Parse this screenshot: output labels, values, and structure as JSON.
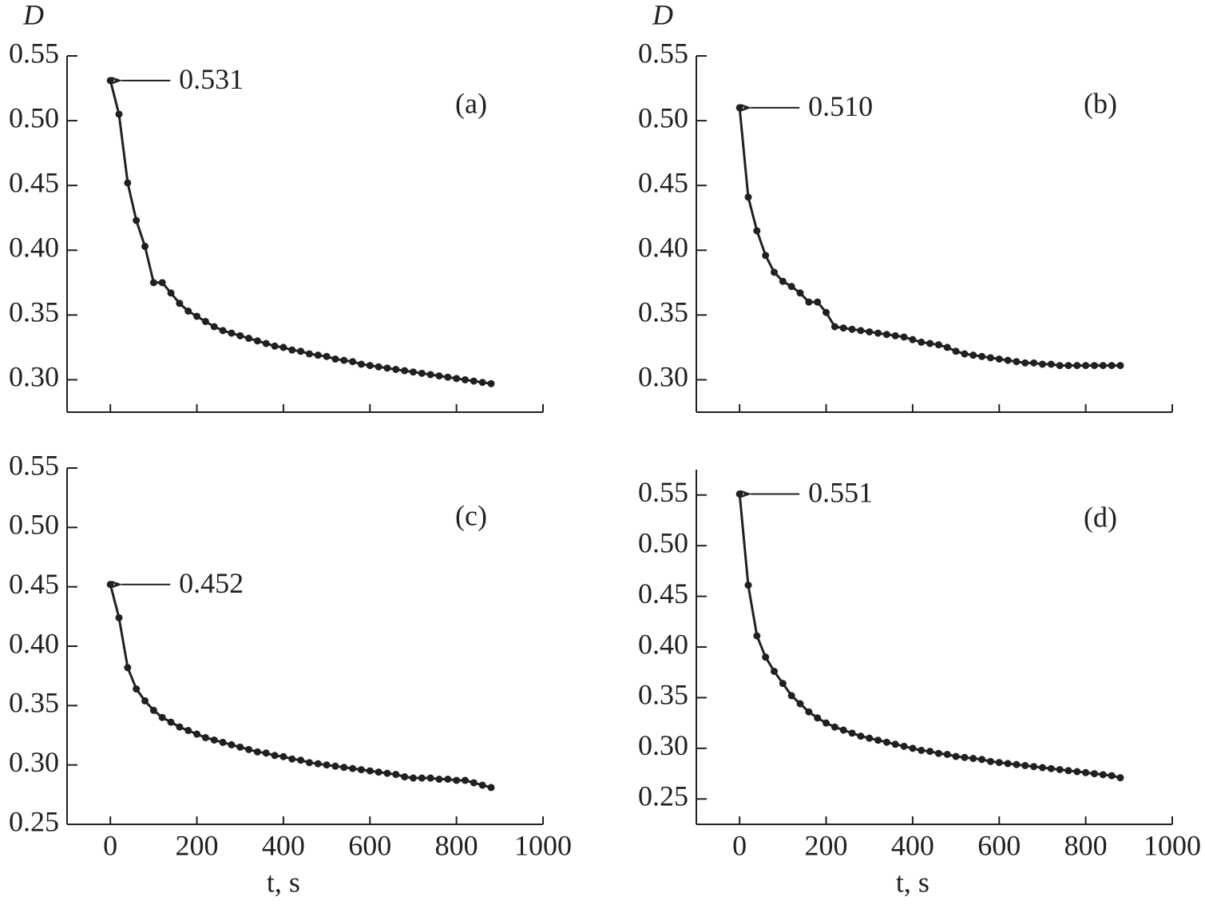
{
  "chart_data": [
    {
      "type": "line",
      "panel_label": "(a)",
      "ylabel": "D",
      "annotation": "0.531",
      "color": "#231f20",
      "show_xticklabels": false,
      "xlim": [
        -100,
        1000
      ],
      "xticks": [
        0,
        200,
        400,
        600,
        800,
        1000
      ],
      "ylim": [
        0.275,
        0.55
      ],
      "yticks": [
        {
          "value": 0.3,
          "label": "0.30"
        },
        0.35,
        {
          "value": 0.4,
          "label": "0.40"
        },
        0.45,
        {
          "value": 0.5,
          "label": "0.50"
        },
        0.55
      ],
      "x": [
        0,
        20,
        40,
        60,
        80,
        100,
        120,
        140,
        160,
        180,
        200,
        220,
        240,
        260,
        280,
        300,
        320,
        340,
        360,
        380,
        400,
        420,
        440,
        460,
        480,
        500,
        520,
        540,
        560,
        580,
        600,
        620,
        640,
        660,
        680,
        700,
        720,
        740,
        760,
        780,
        800,
        820,
        840,
        860,
        880
      ],
      "values": [
        0.531,
        0.505,
        0.452,
        0.423,
        0.403,
        0.375,
        0.375,
        0.367,
        0.359,
        0.353,
        0.349,
        0.345,
        0.341,
        0.338,
        0.336,
        0.334,
        0.332,
        0.33,
        0.328,
        0.326,
        0.325,
        0.323,
        0.322,
        0.32,
        0.319,
        0.318,
        0.316,
        0.315,
        0.314,
        0.312,
        0.311,
        0.31,
        0.309,
        0.308,
        0.307,
        0.306,
        0.305,
        0.304,
        0.303,
        0.302,
        0.301,
        0.3,
        0.299,
        0.298,
        0.297
      ]
    },
    {
      "type": "line",
      "panel_label": "(b)",
      "ylabel": "D",
      "annotation": "0.510",
      "color": "#231f20",
      "show_xticklabels": false,
      "xlim": [
        -100,
        1000
      ],
      "xticks": [
        0,
        200,
        400,
        600,
        800,
        1000
      ],
      "ylim": [
        0.275,
        0.55
      ],
      "yticks": [
        {
          "value": 0.3,
          "label": "0.30"
        },
        0.35,
        {
          "value": 0.4,
          "label": "0.40"
        },
        0.45,
        {
          "value": 0.5,
          "label": "0.50"
        },
        0.55
      ],
      "x": [
        0,
        20,
        40,
        60,
        80,
        100,
        120,
        140,
        160,
        180,
        200,
        220,
        240,
        260,
        280,
        300,
        320,
        340,
        360,
        380,
        400,
        420,
        440,
        460,
        480,
        500,
        520,
        540,
        560,
        580,
        600,
        620,
        640,
        660,
        680,
        700,
        720,
        740,
        760,
        780,
        800,
        820,
        840,
        860,
        880
      ],
      "values": [
        0.51,
        0.441,
        0.415,
        0.396,
        0.383,
        0.376,
        0.372,
        0.367,
        0.36,
        0.36,
        0.352,
        0.341,
        0.34,
        0.339,
        0.338,
        0.337,
        0.336,
        0.335,
        0.334,
        0.333,
        0.331,
        0.329,
        0.328,
        0.327,
        0.325,
        0.322,
        0.32,
        0.319,
        0.318,
        0.317,
        0.316,
        0.315,
        0.314,
        0.313,
        0.313,
        0.312,
        0.312,
        0.311,
        0.311,
        0.311,
        0.311,
        0.311,
        0.311,
        0.311,
        0.311
      ]
    },
    {
      "type": "line",
      "panel_label": "(c)",
      "xlabel": "t, s",
      "annotation": "0.452",
      "color": "#231f20",
      "show_xticklabels": true,
      "xlim": [
        -100,
        1000
      ],
      "xticks": [
        0,
        200,
        400,
        600,
        800,
        1000
      ],
      "ylim": [
        0.25,
        0.55
      ],
      "yticks": [
        0.25,
        {
          "value": 0.3,
          "label": "0.30"
        },
        0.35,
        {
          "value": 0.4,
          "label": "0.40"
        },
        0.45,
        {
          "value": 0.5,
          "label": "0.50"
        },
        0.55
      ],
      "x": [
        0,
        20,
        40,
        60,
        80,
        100,
        120,
        140,
        160,
        180,
        200,
        220,
        240,
        260,
        280,
        300,
        320,
        340,
        360,
        380,
        400,
        420,
        440,
        460,
        480,
        500,
        520,
        540,
        560,
        580,
        600,
        620,
        640,
        660,
        680,
        700,
        720,
        740,
        760,
        780,
        800,
        820,
        840,
        860,
        880
      ],
      "values": [
        0.452,
        0.424,
        0.382,
        0.364,
        0.354,
        0.346,
        0.34,
        0.336,
        0.332,
        0.329,
        0.326,
        0.323,
        0.321,
        0.319,
        0.317,
        0.315,
        0.313,
        0.311,
        0.31,
        0.308,
        0.307,
        0.305,
        0.304,
        0.302,
        0.301,
        0.3,
        0.299,
        0.298,
        0.297,
        0.296,
        0.295,
        0.294,
        0.293,
        0.292,
        0.29,
        0.289,
        0.289,
        0.289,
        0.288,
        0.288,
        0.287,
        0.287,
        0.285,
        0.283,
        0.281
      ]
    },
    {
      "type": "line",
      "panel_label": "(d)",
      "xlabel": "t, s",
      "annotation": "0.551",
      "color": "#231f20",
      "show_xticklabels": true,
      "xlim": [
        -100,
        1000
      ],
      "xticks": [
        0,
        200,
        400,
        600,
        800,
        1000
      ],
      "ylim": [
        0.225,
        0.575
      ],
      "yticks": [
        0.25,
        {
          "value": 0.3,
          "label": "0.30"
        },
        0.35,
        {
          "value": 0.4,
          "label": "0.40"
        },
        0.45,
        {
          "value": 0.5,
          "label": "0.50"
        },
        0.55
      ],
      "x": [
        0,
        20,
        40,
        60,
        80,
        100,
        120,
        140,
        160,
        180,
        200,
        220,
        240,
        260,
        280,
        300,
        320,
        340,
        360,
        380,
        400,
        420,
        440,
        460,
        480,
        500,
        520,
        540,
        560,
        580,
        600,
        620,
        640,
        660,
        680,
        700,
        720,
        740,
        760,
        780,
        800,
        820,
        840,
        860,
        880
      ],
      "values": [
        0.551,
        0.461,
        0.411,
        0.39,
        0.376,
        0.364,
        0.352,
        0.344,
        0.336,
        0.33,
        0.325,
        0.321,
        0.318,
        0.315,
        0.312,
        0.31,
        0.308,
        0.306,
        0.304,
        0.302,
        0.3,
        0.298,
        0.297,
        0.295,
        0.294,
        0.292,
        0.291,
        0.29,
        0.289,
        0.287,
        0.286,
        0.285,
        0.284,
        0.283,
        0.282,
        0.281,
        0.28,
        0.279,
        0.278,
        0.277,
        0.276,
        0.275,
        0.274,
        0.273,
        0.271
      ]
    }
  ]
}
